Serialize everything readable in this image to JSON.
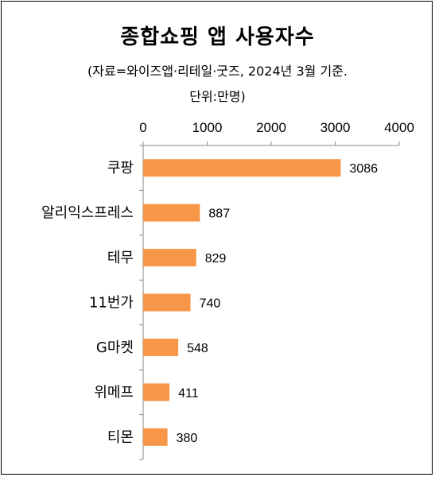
{
  "chart_data": {
    "type": "bar",
    "orientation": "horizontal",
    "title": "종합쇼핑 앱 사용자수",
    "subtitle_line1": "(자료=와이즈앱·리테일·굿즈, 2024년 3월 기준.",
    "subtitle_line2": "단위:만명)",
    "categories": [
      "쿠팡",
      "알리익스프레스",
      "테무",
      "11번가",
      "G마켓",
      "위메프",
      "티몬"
    ],
    "values": [
      3086,
      887,
      829,
      740,
      548,
      411,
      380
    ],
    "value_labels": [
      "3086",
      "887",
      "829",
      "740",
      "548",
      "411",
      "380"
    ],
    "xlim": [
      0,
      4000
    ],
    "xticks": [
      "0",
      "1000",
      "2000",
      "3000",
      "4000"
    ],
    "x_axis_position": "top",
    "grid": false,
    "legend": "none",
    "bar_color": "#F79646"
  }
}
